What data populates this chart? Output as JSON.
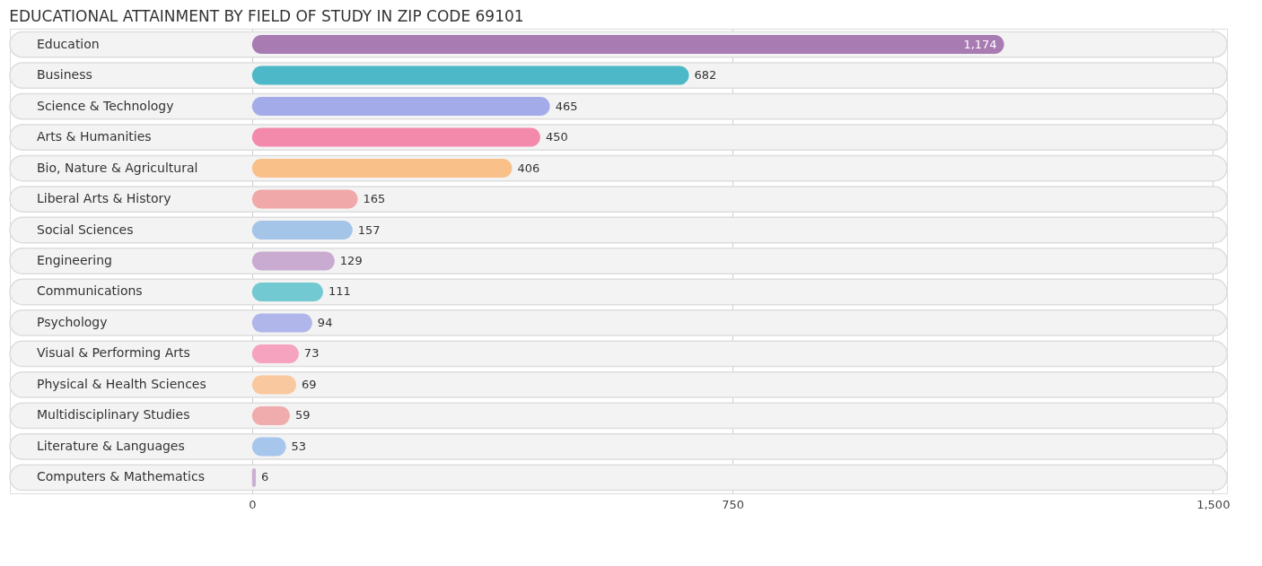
{
  "chart_data": {
    "type": "bar",
    "orientation": "horizontal",
    "title": "EDUCATIONAL ATTAINMENT BY FIELD OF STUDY IN ZIP CODE 69101",
    "categories": [
      "Education",
      "Business",
      "Science & Technology",
      "Arts & Humanities",
      "Bio, Nature & Agricultural",
      "Liberal Arts & History",
      "Social Sciences",
      "Engineering",
      "Communications",
      "Psychology",
      "Visual & Performing Arts",
      "Physical & Health Sciences",
      "Multidisciplinary Studies",
      "Literature & Languages",
      "Computers & Mathematics"
    ],
    "values": [
      1174,
      682,
      465,
      450,
      406,
      165,
      157,
      129,
      111,
      94,
      73,
      69,
      59,
      53,
      6
    ],
    "value_labels": [
      "1,174",
      "682",
      "465",
      "450",
      "406",
      "165",
      "157",
      "129",
      "111",
      "94",
      "73",
      "69",
      "59",
      "53",
      "6"
    ],
    "colors": [
      "#a87bb3",
      "#4db8c7",
      "#a3ace8",
      "#f48aab",
      "#f9c08a",
      "#f0a8a8",
      "#a4c4e8",
      "#c9abd1",
      "#72c9d1",
      "#b0b6ea",
      "#f6a3c0",
      "#f9c89e",
      "#f0acac",
      "#a6c6ec",
      "#ccb0d4"
    ],
    "xlim": [
      -378,
      1522
    ],
    "xticks": [
      0,
      750,
      {
        "value": 1500,
        "label": "1,500"
      }
    ],
    "grid": "x"
  }
}
